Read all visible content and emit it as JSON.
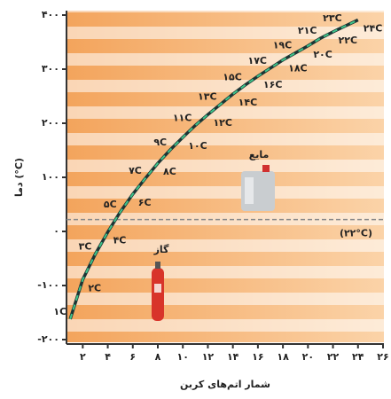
{
  "chart_data": {
    "type": "line",
    "y_label": "دما (°C)",
    "x_label": "شمار اتم‌های کربن",
    "x": [
      1,
      2,
      3,
      4,
      5,
      6,
      7,
      8,
      9,
      10,
      11,
      12,
      13,
      14,
      15,
      16,
      17,
      18,
      19,
      20,
      21,
      22,
      23,
      24
    ],
    "series": [
      {
        "color": "#1f6f5a",
        "values": [
          -162,
          -89,
          -42,
          -1,
          36,
          69,
          98,
          126,
          151,
          174,
          196,
          216,
          235,
          254,
          271,
          287,
          302,
          317,
          330,
          343,
          357,
          369,
          380,
          391
        ]
      }
    ],
    "point_labels": [
      "۱C",
      "۲C",
      "۳C",
      "۴C",
      "۵C",
      "۶C",
      "۷C",
      "۸C",
      "۹C",
      "۱۰C",
      "۱۱C",
      "۱۲C",
      "۱۳C",
      "۱۴C",
      "۱۵C",
      "۱۶C",
      "۱۷C",
      "۱۸C",
      "۱۹C",
      "۲۰C",
      "۲۱C",
      "۲۲C",
      "۲۳C",
      "۲۴C"
    ],
    "xlim": [
      0.7,
      26
    ],
    "ylim": [
      -200,
      400
    ],
    "xticks": [
      {
        "value": 2,
        "label": "۲"
      },
      {
        "value": 4,
        "label": "۴"
      },
      {
        "value": 6,
        "label": "۶"
      },
      {
        "value": 8,
        "label": "۸"
      },
      {
        "value": 10,
        "label": "۱۰"
      },
      {
        "value": 12,
        "label": "۱۲"
      },
      {
        "value": 14,
        "label": "۱۴"
      },
      {
        "value": 16,
        "label": "۱۶"
      },
      {
        "value": 18,
        "label": "۱۸"
      },
      {
        "value": 20,
        "label": "۲۰"
      },
      {
        "value": 22,
        "label": "۲۲"
      },
      {
        "value": 24,
        "label": "۲۴"
      },
      {
        "value": 26,
        "label": "۲۶"
      }
    ],
    "yticks": [
      {
        "value": -200,
        "label": "-۲۰۰"
      },
      {
        "value": -100,
        "label": "-۱۰۰"
      },
      {
        "value": 0,
        "label": "۰"
      },
      {
        "value": 100,
        "label": "۱۰۰"
      },
      {
        "value": 200,
        "label": "۲۰۰"
      },
      {
        "value": 300,
        "label": "۳۰۰"
      },
      {
        "value": 400,
        "label": "۴۰۰"
      }
    ],
    "reference_line": {
      "value": 22,
      "label": "(۲۲°C)"
    },
    "annotations": [
      "گاز",
      "مایع"
    ]
  }
}
